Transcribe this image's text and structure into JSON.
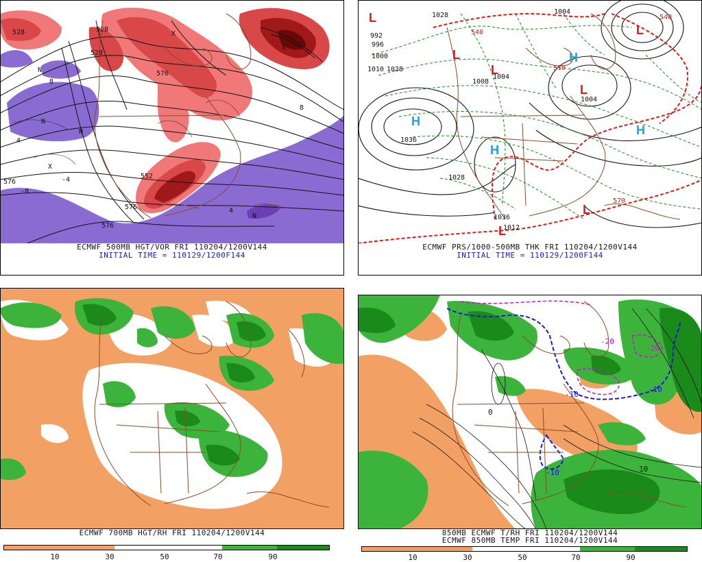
{
  "panels": {
    "top_left": {
      "caption": "ECMWF 500MB HGT/VOR FRI 110204/1200V144",
      "subcaption": "INITIAL TIME = 110129/1200F144",
      "labels": [
        "528",
        "528",
        "576",
        "576",
        "552",
        "576",
        "528",
        "576",
        "8",
        "8",
        "4",
        "4",
        "-8",
        "-4",
        "N",
        "N",
        "N",
        "N",
        "X",
        "X",
        "X"
      ],
      "colors": {
        "negative": "#8a6bd2",
        "negative_dark": "#6b3fb7",
        "pos_light": "#f07878",
        "pos_mid": "#d84848",
        "pos_dark": "#a01818",
        "pos_darkest": "#6a0808"
      }
    },
    "top_right": {
      "caption": "ECMWF PRS/1000-500MB THK FRI 110204/1200V144",
      "subcaption": "INITIAL TIME = 110129/1200F144",
      "pressure_labels": [
        "1036",
        "1028",
        "1004",
        "1004",
        "1008",
        "1004",
        "1028",
        "1012",
        "992",
        "996",
        "1000",
        "1010",
        "1028",
        "1036"
      ],
      "thickness_labels": [
        "540",
        "510",
        "570",
        "540"
      ],
      "highs": [
        "H",
        "H",
        "H",
        "H"
      ],
      "lows": [
        "L",
        "L",
        "L",
        "L",
        "L",
        "L",
        "L"
      ],
      "colors": {
        "high": "#1aa7d8",
        "low": "#e01818",
        "thickness": "#1a8a1a",
        "thickness_warm": "#e01818"
      }
    },
    "bottom_left": {
      "caption": "ECMWF 700MB HGT/RH FRI 110204/1200V144",
      "colorbar_ticks": [
        "10",
        "30",
        "50",
        "70",
        "90"
      ],
      "colors": {
        "dry": "#f3a064",
        "moist": "#3cb43c",
        "wet": "#1a8a1a"
      }
    },
    "bottom_right": {
      "caption": "850MB ECMWF T/RH FRI 110204/1200V144",
      "caption2": "ECMWF 850MB TEMP FRI 110204/1200V144",
      "labels": [
        "-10",
        "-10",
        "-10",
        "-20",
        "-20",
        "0",
        "10"
      ],
      "colorbar_ticks": [
        "10",
        "30",
        "50",
        "70",
        "90"
      ],
      "colors": {
        "dry": "#f3a064",
        "moist": "#3cb43c",
        "wet": "#1a8a1a",
        "freeze": "#1a1ad0",
        "cold": "#c21ac2"
      }
    }
  }
}
